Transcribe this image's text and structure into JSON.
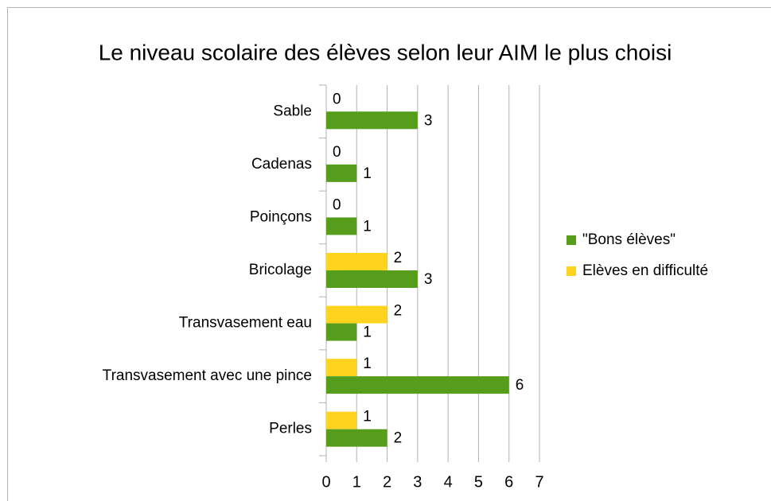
{
  "chart_data": {
    "type": "bar",
    "orientation": "horizontal",
    "title": "Le niveau scolaire des élèves selon leur AIM le plus choisi",
    "categories": [
      "Sable",
      "Cadenas",
      "Poinçons",
      "Bricolage",
      "Transvasement eau",
      "Transvasement avec une pince",
      "Perles"
    ],
    "series": [
      {
        "name": "\"Bons élèves\"",
        "color": "#579d1c",
        "values": [
          3,
          1,
          1,
          3,
          1,
          6,
          2
        ]
      },
      {
        "name": "Elèves en difficulté",
        "color": "#ffd320",
        "values": [
          0,
          0,
          0,
          2,
          2,
          1,
          1
        ]
      }
    ],
    "xlim": [
      0,
      7
    ],
    "xticks": [
      0,
      1,
      2,
      3,
      4,
      5,
      6,
      7
    ],
    "grid": true,
    "legend": "right"
  }
}
